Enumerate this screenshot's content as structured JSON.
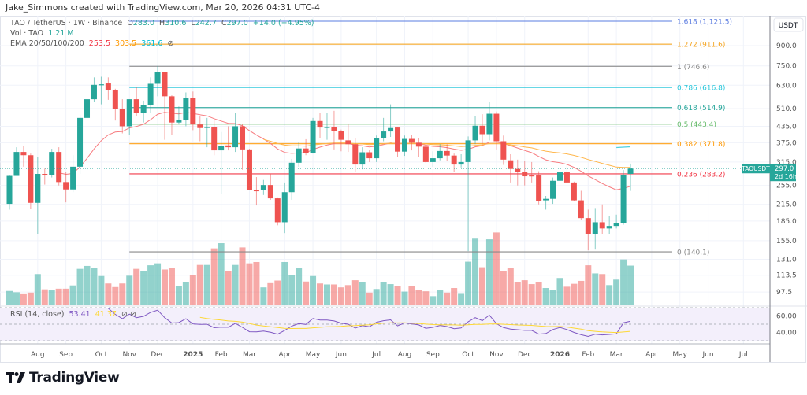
{
  "credit": "Jake_Simmons created with TradingView.com, Mar 20, 2026 04:31 UTC-4",
  "legend": {
    "symbol": "TAO / TetherUS · 1W · Binance",
    "o_label": "O",
    "o": "283.0",
    "h_label": "H",
    "h": "310.6",
    "l_label": "L",
    "l": "242.7",
    "c_label": "C",
    "c": "297.0",
    "change": "+14.0 (+4.95%)",
    "vol_label": "Vol · TAO",
    "vol": "1.21 M",
    "ema_label": "EMA 20/50/100/200",
    "ema20": "253.5",
    "ema50": "303.5",
    "ema100": "361.6",
    "ema200_icon": "hidden-value-icon"
  },
  "rsi_legend": {
    "label": "RSI (14, close)",
    "value": "53.41",
    "ma": "41.37"
  },
  "price_axis": {
    "currency": "USDT",
    "ticks": [
      "900.0",
      "750.0",
      "630.0",
      "510.0",
      "435.0",
      "375.0",
      "315.0",
      "255.0",
      "215.0",
      "185.0",
      "155.0",
      "131.0",
      "113.5",
      "97.5"
    ],
    "current": {
      "symbol": "TAOUSDT",
      "price": "297.0",
      "countdown": "2d 16h"
    }
  },
  "rsi_axis": {
    "ticks": [
      "60.00",
      "40.00"
    ]
  },
  "logo_text": "TradingView",
  "colors": {
    "up": "#26a69a",
    "down": "#ef5350",
    "ema20": "#f77c80",
    "ema50": "#ffb74d",
    "ema100": "#4dd0e1",
    "rsi": "#7e57c2",
    "rsi_ma": "#fdd835",
    "rsi_bg": "#f3effb"
  },
  "chart_data": {
    "type": "candlestick",
    "scale": "log",
    "grid": true,
    "x_ticks": [
      {
        "label": "Aug",
        "date": "2024-08-05"
      },
      {
        "label": "Sep",
        "date": "2024-09-02"
      },
      {
        "label": "Oct",
        "date": "2024-10-07"
      },
      {
        "label": "Nov",
        "date": "2024-11-04"
      },
      {
        "label": "Dec",
        "date": "2024-12-02"
      },
      {
        "label": "2025",
        "date": "2025-01-06",
        "bold": true
      },
      {
        "label": "Feb",
        "date": "2025-02-03"
      },
      {
        "label": "Mar",
        "date": "2025-03-03"
      },
      {
        "label": "Apr",
        "date": "2025-04-07"
      },
      {
        "label": "May",
        "date": "2025-05-05"
      },
      {
        "label": "Jun",
        "date": "2025-06-02"
      },
      {
        "label": "Jul",
        "date": "2025-07-07"
      },
      {
        "label": "Aug",
        "date": "2025-08-04"
      },
      {
        "label": "Sep",
        "date": "2025-09-01"
      },
      {
        "label": "Oct",
        "date": "2025-10-06"
      },
      {
        "label": "Nov",
        "date": "2025-11-03"
      },
      {
        "label": "Dec",
        "date": "2025-12-01"
      },
      {
        "label": "2026",
        "date": "2026-01-05",
        "bold": true
      },
      {
        "label": "Feb",
        "date": "2026-02-02"
      },
      {
        "label": "Mar",
        "date": "2026-03-02"
      },
      {
        "label": "Apr",
        "date": "2026-04-06"
      },
      {
        "label": "May",
        "date": "2026-05-04"
      },
      {
        "label": "Jun",
        "date": "2026-06-01"
      },
      {
        "label": "Jul",
        "date": "2026-07-06"
      }
    ],
    "fib_levels": [
      {
        "ratio": "1.618",
        "price": 1121.5,
        "label": "1.618 (1,121.5)",
        "color": "#5b7ce0"
      },
      {
        "ratio": "1.272",
        "price": 911.6,
        "label": "1.272 (911.6)",
        "color": "#f5a623"
      },
      {
        "ratio": "1",
        "price": 746.6,
        "label": "1 (746.6)",
        "color": "#888888"
      },
      {
        "ratio": "0.786",
        "price": 616.8,
        "label": "0.786 (616.8)",
        "color": "#26c6da"
      },
      {
        "ratio": "0.618",
        "price": 514.9,
        "label": "0.618 (514.9)",
        "color": "#26a69a"
      },
      {
        "ratio": "0.5",
        "price": 443.4,
        "label": "0.5 (443.4)",
        "color": "#66bb6a"
      },
      {
        "ratio": "0.382",
        "price": 371.8,
        "label": "0.382 (371.8)",
        "color": "#ff9800"
      },
      {
        "ratio": "0.236",
        "price": 283.2,
        "label": "0.236 (283.2)",
        "color": "#f23645"
      },
      {
        "ratio": "0",
        "price": 140.1,
        "label": "0 (140.1)",
        "color": "#888888"
      }
    ],
    "fib_start_date": "2024-11-04",
    "columns": [
      "week",
      "open",
      "high",
      "low",
      "close",
      "volume_M"
    ],
    "candles": [
      [
        "2024-07-08",
        216,
        280,
        205,
        278,
        0.43
      ],
      [
        "2024-07-15",
        278,
        360,
        278,
        345,
        0.39
      ],
      [
        "2024-07-22",
        345,
        365,
        302,
        335,
        0.33
      ],
      [
        "2024-07-29",
        335,
        340,
        207,
        218,
        0.38
      ],
      [
        "2024-08-05",
        218,
        330,
        165,
        283,
        0.95
      ],
      [
        "2024-08-12",
        283,
        297,
        257,
        281,
        0.48
      ],
      [
        "2024-08-19",
        281,
        355,
        274,
        345,
        0.45
      ],
      [
        "2024-08-26",
        345,
        360,
        255,
        263,
        0.5
      ],
      [
        "2024-09-02",
        263,
        287,
        219,
        246,
        0.5
      ],
      [
        "2024-09-09",
        246,
        335,
        240,
        302,
        0.6
      ],
      [
        "2024-09-16",
        302,
        483,
        283,
        469,
        1.11
      ],
      [
        "2024-09-23",
        469,
        595,
        462,
        555,
        1.2
      ],
      [
        "2024-09-30",
        555,
        676,
        540,
        632,
        1.15
      ],
      [
        "2024-10-07",
        632,
        680,
        530,
        635,
        0.89
      ],
      [
        "2024-10-14",
        640,
        676,
        552,
        602,
        0.66
      ],
      [
        "2024-10-21",
        602,
        610,
        458,
        510,
        0.55
      ],
      [
        "2024-10-28",
        510,
        555,
        408,
        435,
        0.66
      ],
      [
        "2024-11-04",
        435,
        555,
        402,
        555,
        0.9
      ],
      [
        "2024-11-11",
        555,
        622,
        477,
        490,
        1.11
      ],
      [
        "2024-11-18",
        490,
        548,
        450,
        525,
        1.04
      ],
      [
        "2024-11-25",
        525,
        676,
        491,
        638,
        1.22
      ],
      [
        "2024-12-02",
        638,
        750,
        570,
        710,
        1.28
      ],
      [
        "2024-12-09",
        710,
        712,
        385,
        570,
        1.09
      ],
      [
        "2024-12-16",
        570,
        575,
        402,
        450,
        1.14
      ],
      [
        "2024-12-23",
        450,
        520,
        442,
        460,
        0.58
      ],
      [
        "2024-12-30",
        460,
        590,
        435,
        560,
        0.7
      ],
      [
        "2025-01-06",
        560,
        595,
        420,
        442,
        0.91
      ],
      [
        "2025-01-13",
        442,
        475,
        380,
        428,
        1.23
      ],
      [
        "2025-01-20",
        430,
        469,
        360,
        432,
        1.23
      ],
      [
        "2025-01-27",
        432,
        462,
        335,
        350,
        1.74
      ],
      [
        "2025-02-03",
        350,
        413,
        236,
        364,
        1.9
      ],
      [
        "2025-02-10",
        366,
        435,
        350,
        360,
        1.04
      ],
      [
        "2025-02-17",
        360,
        490,
        345,
        435,
        1.23
      ],
      [
        "2025-02-24",
        435,
        445,
        294,
        353,
        1.77
      ],
      [
        "2025-03-03",
        353,
        355,
        244,
        245,
        1.28
      ],
      [
        "2025-03-10",
        245,
        275,
        213,
        242,
        1.32
      ],
      [
        "2025-03-17",
        244,
        268,
        234,
        256,
        0.54
      ],
      [
        "2025-03-24",
        256,
        283,
        224,
        227,
        0.67
      ],
      [
        "2025-03-31",
        227,
        229,
        178,
        183,
        0.75
      ],
      [
        "2025-04-07",
        183,
        262,
        166,
        240,
        1.32
      ],
      [
        "2025-04-14",
        240,
        324,
        224,
        313,
        0.91
      ],
      [
        "2025-04-21",
        313,
        377,
        302,
        356,
        1.15
      ],
      [
        "2025-04-28",
        356,
        387,
        335,
        342,
        0.72
      ],
      [
        "2025-05-05",
        342,
        469,
        340,
        456,
        0.89
      ],
      [
        "2025-05-12",
        456,
        490,
        392,
        430,
        0.66
      ],
      [
        "2025-05-19",
        430,
        492,
        385,
        432,
        0.63
      ],
      [
        "2025-05-26",
        432,
        500,
        353,
        418,
        0.63
      ],
      [
        "2025-06-02",
        416,
        422,
        347,
        385,
        0.54
      ],
      [
        "2025-06-09",
        383,
        445,
        345,
        370,
        0.61
      ],
      [
        "2025-06-16",
        370,
        390,
        288,
        308,
        0.76
      ],
      [
        "2025-06-23",
        308,
        360,
        295,
        344,
        0.69
      ],
      [
        "2025-06-30",
        344,
        350,
        315,
        326,
        0.38
      ],
      [
        "2025-07-07",
        326,
        400,
        315,
        390,
        0.49
      ],
      [
        "2025-07-14",
        390,
        469,
        380,
        415,
        0.69
      ],
      [
        "2025-07-21",
        415,
        530,
        395,
        428,
        0.64
      ],
      [
        "2025-07-28",
        430,
        432,
        330,
        346,
        0.59
      ],
      [
        "2025-08-04",
        346,
        400,
        333,
        388,
        0.41
      ],
      [
        "2025-08-11",
        388,
        402,
        350,
        375,
        0.58
      ],
      [
        "2025-08-18",
        375,
        390,
        330,
        362,
        0.47
      ],
      [
        "2025-08-25",
        362,
        364,
        313,
        315,
        0.42
      ],
      [
        "2025-09-01",
        315,
        347,
        302,
        326,
        0.27
      ],
      [
        "2025-09-08",
        326,
        370,
        320,
        348,
        0.47
      ],
      [
        "2025-09-15",
        348,
        370,
        318,
        334,
        0.38
      ],
      [
        "2025-09-22",
        334,
        340,
        288,
        308,
        0.52
      ],
      [
        "2025-09-29",
        308,
        338,
        300,
        315,
        0.34
      ],
      [
        "2025-10-06",
        315,
        397,
        141,
        383,
        1.33
      ],
      [
        "2025-10-13",
        383,
        478,
        370,
        437,
        2.04
      ],
      [
        "2025-10-20",
        437,
        485,
        370,
        405,
        1.16
      ],
      [
        "2025-10-27",
        405,
        540,
        383,
        487,
        2.02
      ],
      [
        "2025-11-03",
        487,
        497,
        353,
        380,
        2.23
      ],
      [
        "2025-11-10",
        380,
        400,
        307,
        322,
        1.03
      ],
      [
        "2025-11-17",
        320,
        338,
        262,
        296,
        1.15
      ],
      [
        "2025-11-24",
        296,
        322,
        255,
        288,
        0.69
      ],
      [
        "2025-12-01",
        288,
        318,
        255,
        277,
        0.76
      ],
      [
        "2025-12-08",
        279,
        315,
        262,
        277,
        0.64
      ],
      [
        "2025-12-15",
        279,
        290,
        215,
        221,
        0.69
      ],
      [
        "2025-12-22",
        223,
        232,
        205,
        226,
        0.52
      ],
      [
        "2025-12-29",
        226,
        274,
        216,
        266,
        0.47
      ],
      [
        "2026-01-05",
        266,
        302,
        257,
        287,
        0.83
      ],
      [
        "2026-01-12",
        287,
        310,
        260,
        262,
        0.56
      ],
      [
        "2026-01-19",
        262,
        264,
        221,
        223,
        0.65
      ],
      [
        "2026-01-26",
        223,
        243,
        187,
        190,
        0.74
      ],
      [
        "2026-02-02",
        190,
        205,
        142,
        164,
        1.22
      ],
      [
        "2026-02-09",
        164,
        208,
        143,
        183,
        0.97
      ],
      [
        "2026-02-16",
        183,
        215,
        164,
        173,
        0.95
      ],
      [
        "2026-02-23",
        173,
        193,
        164,
        177,
        0.61
      ],
      [
        "2026-03-02",
        177,
        196,
        173,
        181,
        0.78
      ],
      [
        "2026-03-09",
        181,
        293,
        179,
        280,
        1.4
      ],
      [
        "2026-03-16",
        283,
        310.6,
        242.7,
        297,
        1.21
      ]
    ],
    "ema100_last": 361.6
  }
}
